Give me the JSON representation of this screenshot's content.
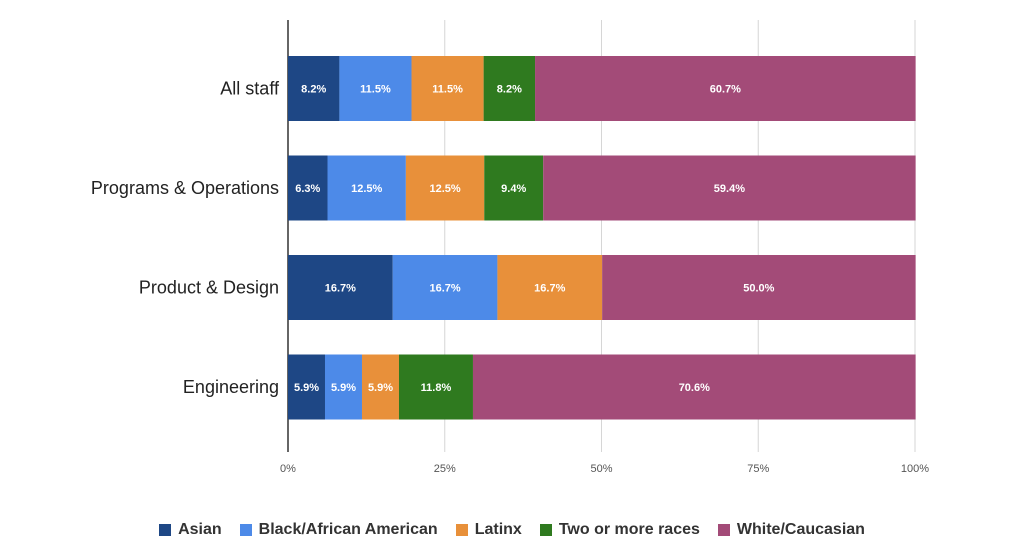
{
  "chart_data": {
    "type": "bar",
    "orientation": "horizontal",
    "stacked": true,
    "categories": [
      "All staff",
      "Programs & Operations",
      "Product & Design",
      "Engineering"
    ],
    "series": [
      {
        "name": "Asian",
        "color": "#1e4785",
        "values": [
          8.2,
          6.3,
          16.7,
          5.9
        ],
        "labels": [
          "8.2%",
          "6.3%",
          "16.7%",
          "5.9%"
        ]
      },
      {
        "name": "Black/African American",
        "color": "#4d8ae8",
        "values": [
          11.5,
          12.5,
          16.7,
          5.9
        ],
        "labels": [
          "11.5%",
          "12.5%",
          "16.7%",
          "5.9%"
        ]
      },
      {
        "name": "Latinx",
        "color": "#e8903a",
        "values": [
          11.5,
          12.5,
          16.7,
          5.9
        ],
        "labels": [
          "11.5%",
          "12.5%",
          "16.7%",
          "5.9%"
        ]
      },
      {
        "name": "Two or more races",
        "color": "#2f7a1f",
        "values": [
          8.2,
          9.4,
          0,
          11.8
        ],
        "labels": [
          "8.2%",
          "9.4%",
          "",
          "11.8%"
        ]
      },
      {
        "name": "White/Caucasian",
        "color": "#a34b78",
        "values": [
          60.7,
          59.4,
          50.0,
          70.6
        ],
        "labels": [
          "60.7%",
          "59.4%",
          "50.0%",
          "70.6%"
        ]
      }
    ],
    "xlim": [
      0,
      100
    ],
    "ticks": [
      0,
      25,
      50,
      75,
      100
    ],
    "tick_labels": [
      "0%",
      "25%",
      "50%",
      "75%",
      "100%"
    ],
    "grid": true,
    "legend_position": "bottom"
  }
}
